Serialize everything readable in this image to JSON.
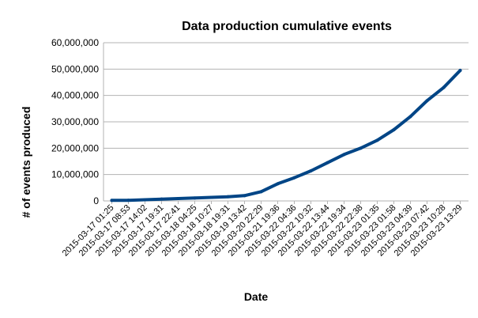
{
  "chart_data": {
    "type": "line",
    "title": "Data production cumulative events",
    "xlabel": "Date",
    "ylabel": "# of events produced",
    "ylim": [
      0,
      60000000
    ],
    "yticks": [
      "0",
      "10,000,000",
      "20,000,000",
      "30,000,000",
      "40,000,000",
      "50,000,000",
      "60,000,000"
    ],
    "categories": [
      "2015-03-17 01:25",
      "2015-03-17 08:53",
      "2015-03-17 14:02",
      "2015-03-17 19:31",
      "2015-03-17 22:41",
      "2015-03-18 04:25",
      "2015-03-18 10:27",
      "2015-03-18 19:31",
      "2015-03-19 13:42",
      "2015-03-20 22:29",
      "2015-03-21 19:36",
      "2015-03-22 04:36",
      "2015-03-22 10:32",
      "2015-03-22 13:44",
      "2015-03-22 19:34",
      "2015-03-22 22:38",
      "2015-03-23 01:35",
      "2015-03-23 01:58",
      "2015-03-23 04:39",
      "2015-03-23 07:42",
      "2015-03-23 10:28",
      "2015-03-23 13:29"
    ],
    "grid": true,
    "legend": "none",
    "series": [
      {
        "color": "#004586",
        "values": [
          200000,
          250000,
          450000,
          700000,
          900000,
          1100000,
          1350000,
          1600000,
          2000000,
          3500000,
          6500000,
          8800000,
          11400000,
          14500000,
          17600000,
          20000000,
          23000000,
          27000000,
          32000000,
          38000000,
          43000000,
          49500000
        ]
      }
    ]
  }
}
